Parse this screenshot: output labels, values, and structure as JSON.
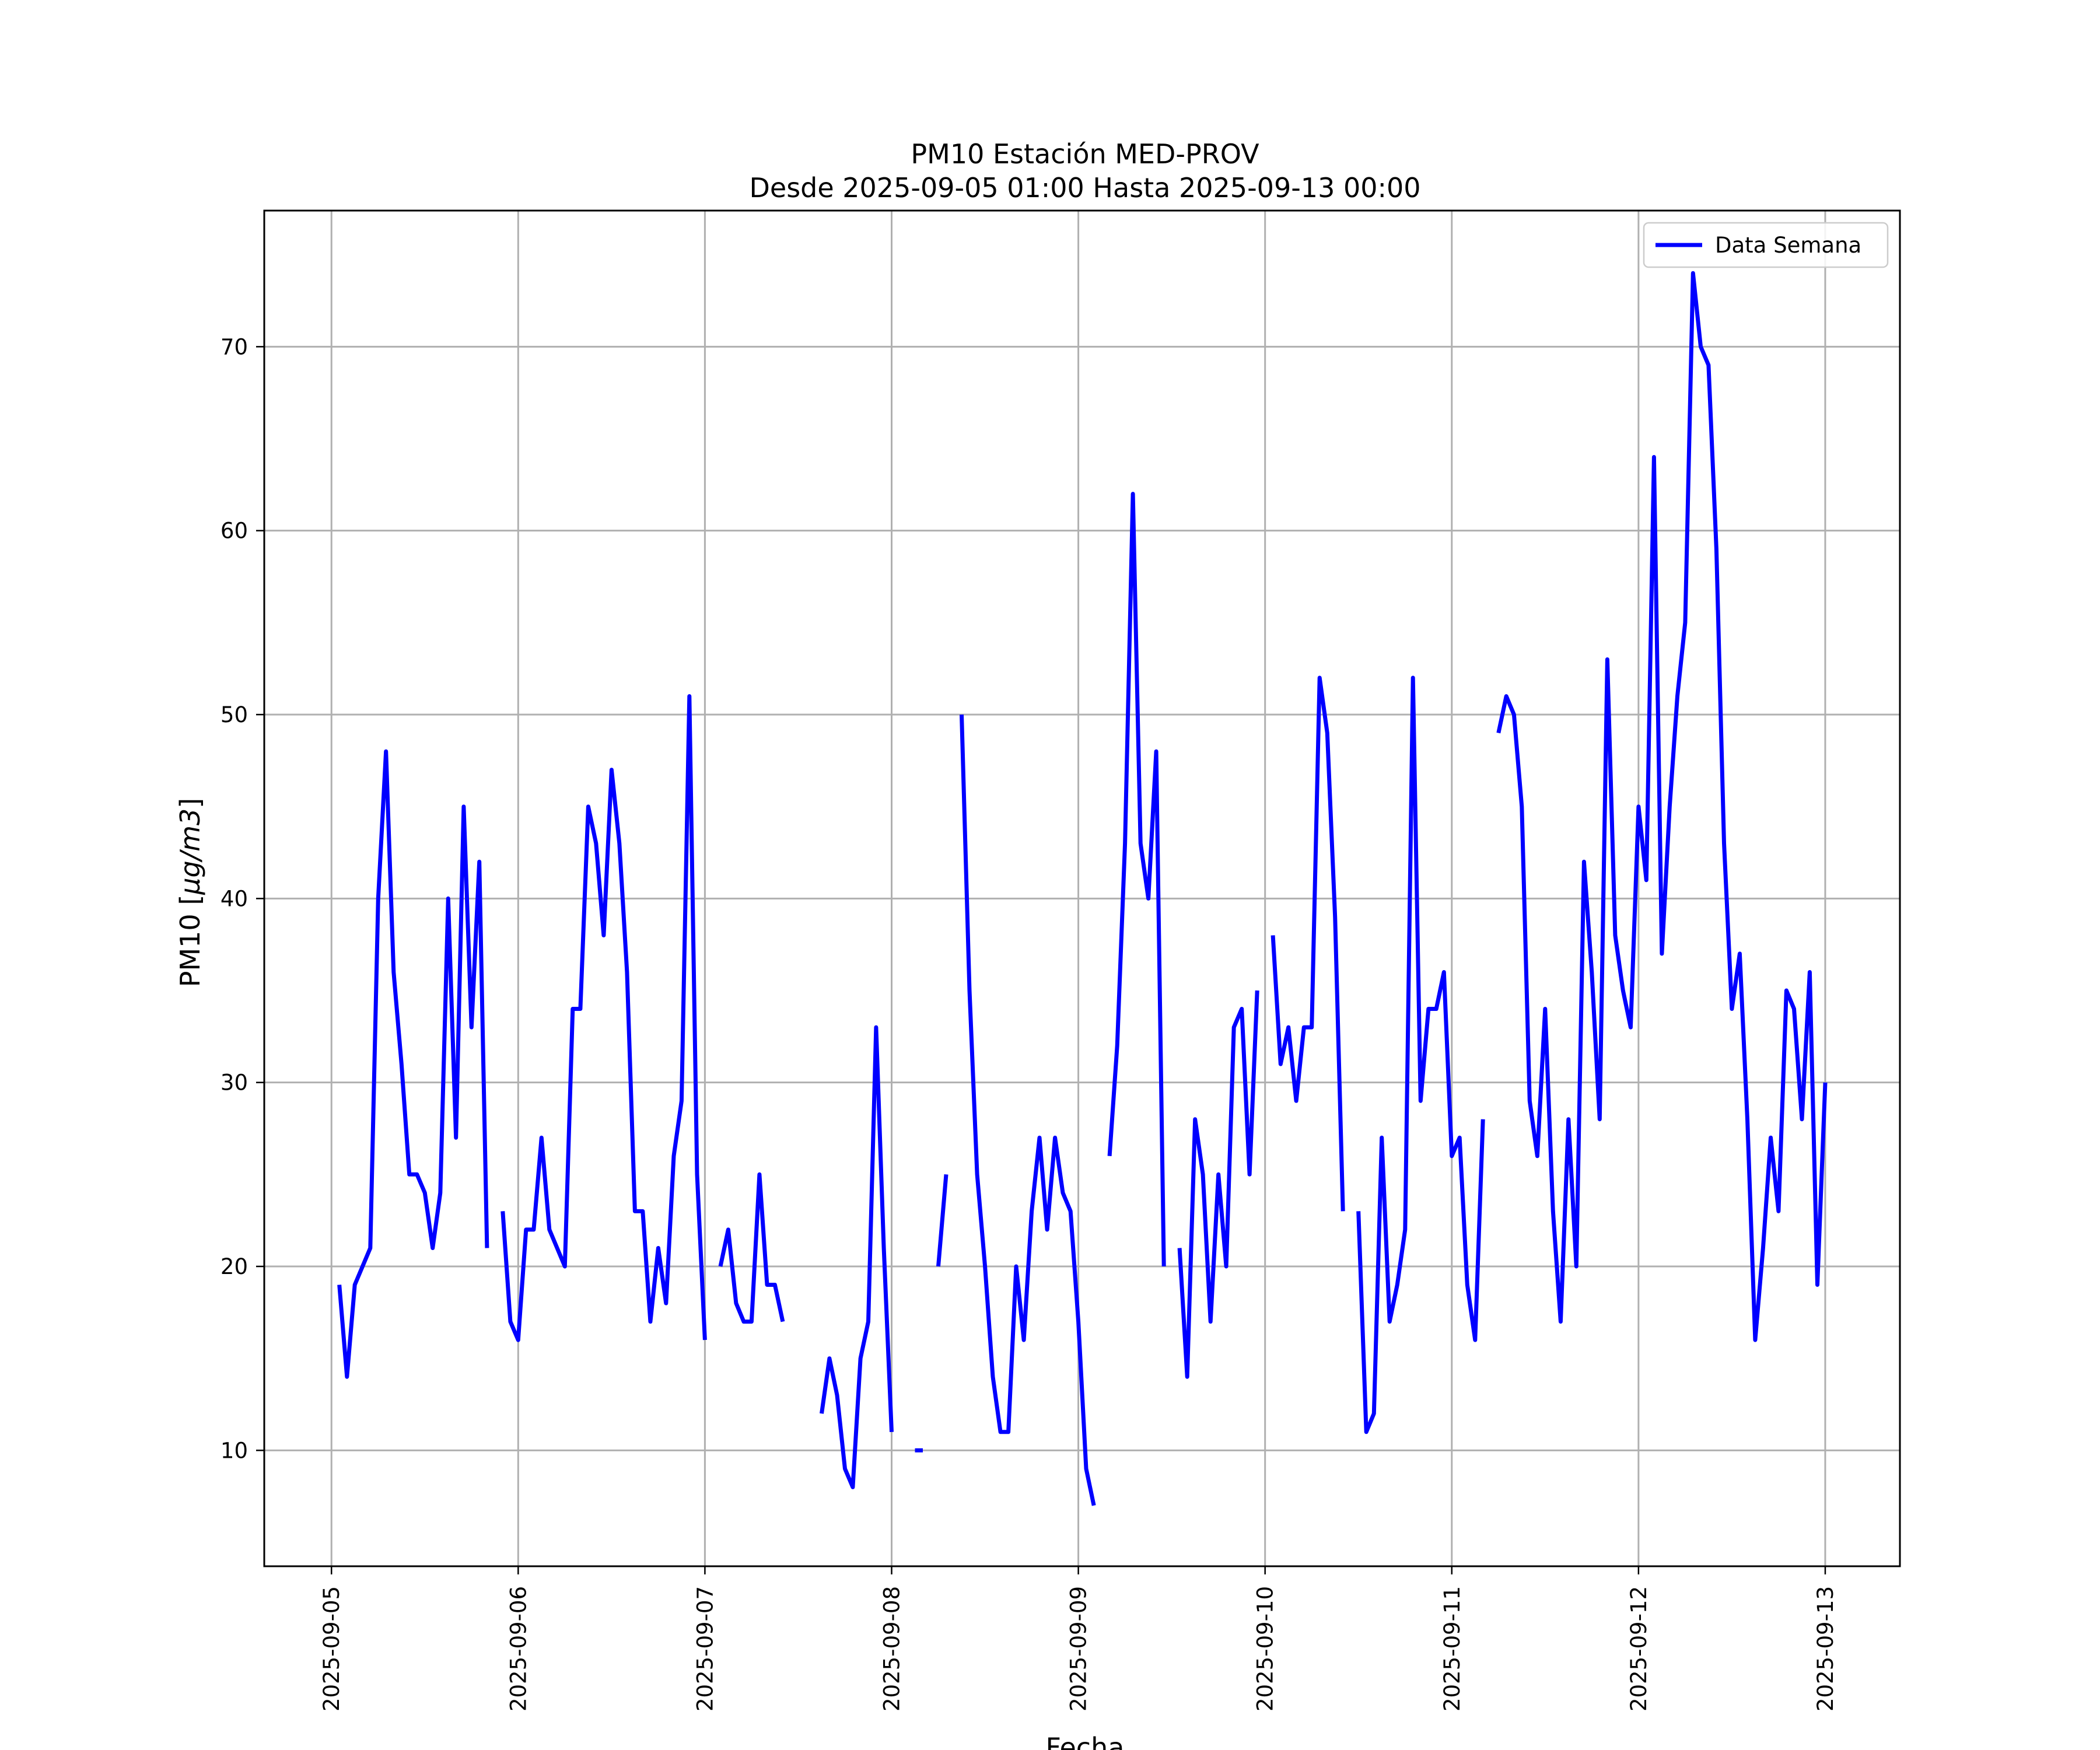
{
  "chart_data": {
    "type": "line",
    "title": "PM10 Estación MED-PROV",
    "subtitle": "Desde 2025-09-05 01:00 Hasta 2025-09-13 00:00",
    "xlabel": "Fecha",
    "ylabel_main": "PM10 [",
    "ylabel_unit": "μg/m3",
    "ylabel_close": "]",
    "x_ticks": [
      "2025-09-05",
      "2025-09-06",
      "2025-09-07",
      "2025-09-08",
      "2025-09-09",
      "2025-09-10",
      "2025-09-11",
      "2025-09-12",
      "2025-09-13"
    ],
    "y_ticks": [
      10,
      20,
      30,
      40,
      50,
      60,
      70
    ],
    "xlim_days": [
      -0.36,
      8.4
    ],
    "ylim": [
      3.7,
      77.4
    ],
    "grid": true,
    "legend_position": "upper right",
    "series": [
      {
        "name": "Data Semana",
        "color": "#0000ff",
        "segments": [
          [
            [
              0.042,
              19
            ],
            [
              0.083,
              14
            ],
            [
              0.125,
              19
            ],
            [
              0.208,
              21
            ],
            [
              0.25,
              40
            ],
            [
              0.292,
              48
            ],
            [
              0.333,
              36
            ],
            [
              0.375,
              31
            ],
            [
              0.417,
              25
            ],
            [
              0.458,
              25
            ],
            [
              0.5,
              24
            ],
            [
              0.542,
              21
            ],
            [
              0.583,
              24
            ],
            [
              0.625,
              40
            ],
            [
              0.667,
              27
            ],
            [
              0.708,
              45
            ],
            [
              0.75,
              33
            ],
            [
              0.792,
              42
            ],
            [
              0.833,
              21
            ]
          ],
          [
            [
              0.917,
              23
            ],
            [
              0.958,
              17
            ],
            [
              1.0,
              16
            ],
            [
              1.042,
              22
            ],
            [
              1.083,
              22
            ],
            [
              1.125,
              27
            ],
            [
              1.167,
              22
            ],
            [
              1.25,
              20
            ],
            [
              1.292,
              34
            ],
            [
              1.333,
              34
            ],
            [
              1.375,
              45
            ],
            [
              1.417,
              43
            ],
            [
              1.458,
              38
            ],
            [
              1.5,
              47
            ],
            [
              1.542,
              43
            ],
            [
              1.583,
              36
            ],
            [
              1.625,
              23
            ],
            [
              1.667,
              23
            ],
            [
              1.708,
              17
            ],
            [
              1.75,
              21
            ],
            [
              1.792,
              18
            ],
            [
              1.833,
              26
            ],
            [
              1.875,
              29
            ],
            [
              1.917,
              51
            ],
            [
              1.958,
              25
            ],
            [
              2.0,
              16
            ]
          ],
          [
            [
              2.083,
              20
            ],
            [
              2.125,
              22
            ],
            [
              2.167,
              18
            ],
            [
              2.208,
              17
            ],
            [
              2.25,
              17
            ],
            [
              2.292,
              25
            ],
            [
              2.333,
              19
            ],
            [
              2.375,
              19
            ],
            [
              2.417,
              17
            ]
          ],
          [
            [
              2.625,
              12
            ],
            [
              2.667,
              15
            ],
            [
              2.708,
              13
            ],
            [
              2.75,
              9
            ],
            [
              2.792,
              8
            ],
            [
              2.833,
              15
            ],
            [
              2.875,
              17
            ],
            [
              2.917,
              33
            ],
            [
              2.958,
              21
            ],
            [
              3.0,
              11
            ]
          ],
          [
            [
              3.125,
              10
            ],
            [
              3.167,
              10
            ]
          ],
          [
            [
              3.25,
              20
            ],
            [
              3.292,
              25
            ]
          ],
          [
            [
              3.375,
              50
            ],
            [
              3.417,
              35
            ],
            [
              3.458,
              25
            ],
            [
              3.5,
              20
            ],
            [
              3.542,
              14
            ],
            [
              3.583,
              11
            ],
            [
              3.625,
              11
            ],
            [
              3.667,
              20
            ],
            [
              3.708,
              16
            ],
            [
              3.75,
              23
            ],
            [
              3.792,
              27
            ],
            [
              3.833,
              22
            ],
            [
              3.875,
              27
            ],
            [
              3.917,
              24
            ],
            [
              3.958,
              23
            ],
            [
              4.0,
              17
            ],
            [
              4.042,
              9
            ],
            [
              4.083,
              7
            ]
          ],
          [
            [
              4.167,
              26
            ],
            [
              4.208,
              32
            ],
            [
              4.25,
              43
            ],
            [
              4.292,
              62
            ],
            [
              4.333,
              43
            ],
            [
              4.375,
              40
            ],
            [
              4.417,
              48
            ],
            [
              4.458,
              20
            ]
          ],
          [
            [
              4.542,
              21
            ],
            [
              4.583,
              14
            ],
            [
              4.625,
              28
            ],
            [
              4.667,
              25
            ],
            [
              4.708,
              17
            ],
            [
              4.75,
              25
            ],
            [
              4.792,
              20
            ],
            [
              4.833,
              33
            ],
            [
              4.875,
              34
            ],
            [
              4.917,
              25
            ],
            [
              4.958,
              35
            ]
          ],
          [
            [
              5.042,
              38
            ],
            [
              5.083,
              31
            ],
            [
              5.125,
              33
            ],
            [
              5.167,
              29
            ],
            [
              5.208,
              33
            ],
            [
              5.25,
              33
            ],
            [
              5.292,
              52
            ],
            [
              5.333,
              49
            ],
            [
              5.375,
              39
            ],
            [
              5.417,
              23
            ]
          ],
          [
            [
              5.5,
              23
            ],
            [
              5.542,
              11
            ],
            [
              5.583,
              12
            ],
            [
              5.625,
              27
            ],
            [
              5.667,
              17
            ],
            [
              5.708,
              19
            ],
            [
              5.75,
              22
            ],
            [
              5.792,
              52
            ],
            [
              5.833,
              29
            ],
            [
              5.875,
              34
            ],
            [
              5.917,
              34
            ],
            [
              5.958,
              36
            ],
            [
              6.0,
              26
            ],
            [
              6.042,
              27
            ],
            [
              6.083,
              19
            ],
            [
              6.125,
              16
            ],
            [
              6.167,
              28
            ]
          ],
          [
            [
              6.25,
              49
            ],
            [
              6.292,
              51
            ],
            [
              6.333,
              50
            ],
            [
              6.375,
              45
            ],
            [
              6.417,
              29
            ],
            [
              6.458,
              26
            ],
            [
              6.5,
              34
            ],
            [
              6.542,
              23
            ],
            [
              6.583,
              17
            ],
            [
              6.625,
              28
            ],
            [
              6.667,
              20
            ],
            [
              6.708,
              42
            ],
            [
              6.75,
              36
            ],
            [
              6.792,
              28
            ],
            [
              6.833,
              53
            ],
            [
              6.875,
              38
            ],
            [
              6.917,
              35
            ],
            [
              6.958,
              33
            ],
            [
              7.0,
              45
            ],
            [
              7.042,
              41
            ],
            [
              7.083,
              64
            ],
            [
              7.125,
              37
            ],
            [
              7.167,
              45
            ],
            [
              7.208,
              51
            ],
            [
              7.25,
              55
            ],
            [
              7.292,
              74
            ],
            [
              7.333,
              70
            ],
            [
              7.375,
              69
            ],
            [
              7.417,
              59
            ],
            [
              7.458,
              43
            ],
            [
              7.5,
              34
            ],
            [
              7.542,
              37
            ],
            [
              7.583,
              28
            ],
            [
              7.625,
              16
            ],
            [
              7.667,
              21
            ],
            [
              7.708,
              27
            ],
            [
              7.75,
              23
            ],
            [
              7.792,
              35
            ],
            [
              7.833,
              34
            ],
            [
              7.875,
              28
            ],
            [
              7.917,
              36
            ],
            [
              7.958,
              19
            ],
            [
              8.0,
              30
            ]
          ]
        ]
      }
    ]
  }
}
